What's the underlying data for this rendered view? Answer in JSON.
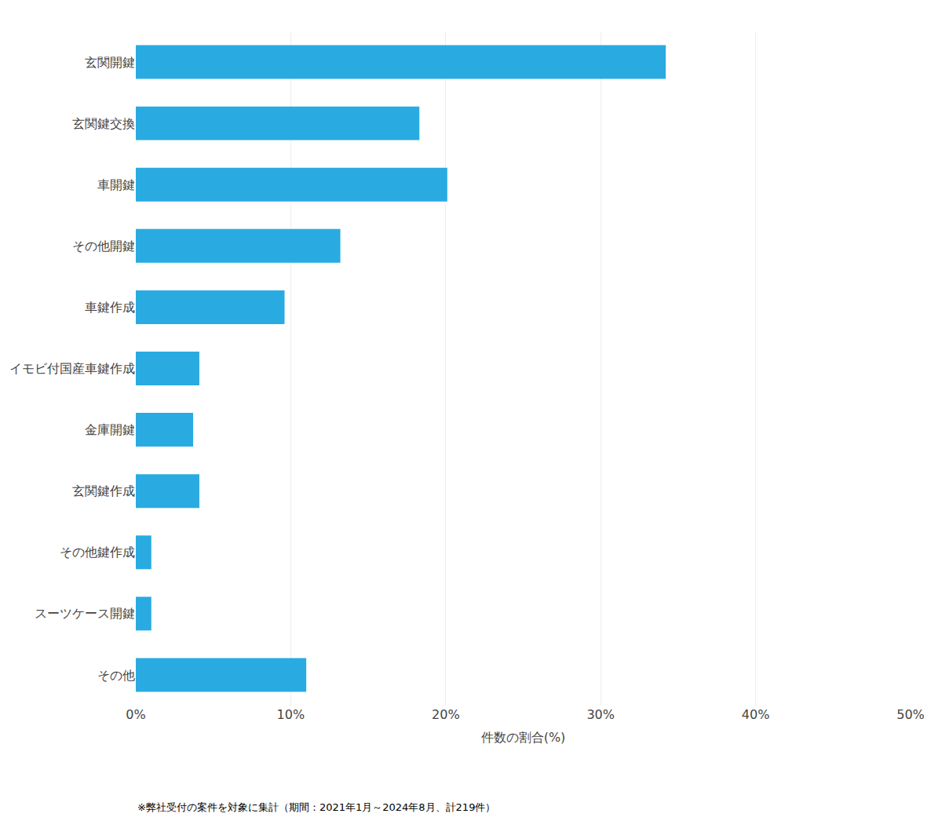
{
  "chart_data": {
    "type": "bar",
    "orientation": "horizontal",
    "categories": [
      "その他",
      "スーツケース開鍵",
      "その他鍵作成",
      "玄関鍵作成",
      "金庫開鍵",
      "イモビ付国産車鍵作成",
      "車鍵作成",
      "その他開鍵",
      "車開鍵",
      "玄関鍵交換",
      "玄関開鍵"
    ],
    "values": [
      11.0,
      1.0,
      1.0,
      4.1,
      3.7,
      4.1,
      9.6,
      13.2,
      20.1,
      18.3,
      34.2
    ],
    "color": "#29ABE2",
    "xlabel": "件数の割合(%)",
    "xlim": [
      0,
      50
    ],
    "xticks": [
      {
        "value": 0,
        "label": "0%"
      },
      {
        "value": 10,
        "label": "10%"
      },
      {
        "value": 20,
        "label": "20%"
      },
      {
        "value": 30,
        "label": "30%"
      },
      {
        "value": 40,
        "label": "40%"
      },
      {
        "value": 50,
        "label": "50%"
      }
    ],
    "grid": true,
    "annotations": [
      "※弊社受付の案件を対象に集計（期間：2021年1月～2024年8月、計219件）"
    ]
  }
}
